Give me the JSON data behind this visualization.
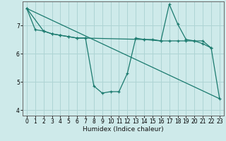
{
  "xlabel": "Humidex (Indice chaleur)",
  "background_color": "#ceeaea",
  "grid_color": "#aed4d4",
  "line_color": "#1a7a6e",
  "xlim": [
    -0.5,
    23.5
  ],
  "ylim": [
    3.8,
    7.85
  ],
  "yticks": [
    4,
    5,
    6,
    7
  ],
  "xticks": [
    0,
    1,
    2,
    3,
    4,
    5,
    6,
    7,
    8,
    9,
    10,
    11,
    12,
    13,
    14,
    15,
    16,
    17,
    18,
    19,
    20,
    21,
    22,
    23
  ],
  "series1_x": [
    0,
    1,
    2,
    3,
    4,
    5,
    6,
    7,
    8,
    9,
    10,
    11,
    12,
    13,
    14,
    15,
    16,
    17,
    18,
    19,
    20,
    21,
    22,
    23
  ],
  "series1_y": [
    7.6,
    6.85,
    6.8,
    6.7,
    6.65,
    6.6,
    6.55,
    6.55,
    4.85,
    4.6,
    4.65,
    4.65,
    5.3,
    6.55,
    6.5,
    6.5,
    6.45,
    7.75,
    7.05,
    6.5,
    6.45,
    6.45,
    6.2,
    4.4
  ],
  "series2_x": [
    0,
    2,
    3,
    4,
    5,
    6,
    7,
    14,
    16,
    17,
    18,
    19,
    20,
    21,
    22
  ],
  "series2_y": [
    7.6,
    6.8,
    6.7,
    6.65,
    6.6,
    6.55,
    6.55,
    6.5,
    6.45,
    6.45,
    6.45,
    6.45,
    6.45,
    6.35,
    6.2
  ],
  "series3_x": [
    0,
    23
  ],
  "series3_y": [
    7.6,
    4.4
  ]
}
